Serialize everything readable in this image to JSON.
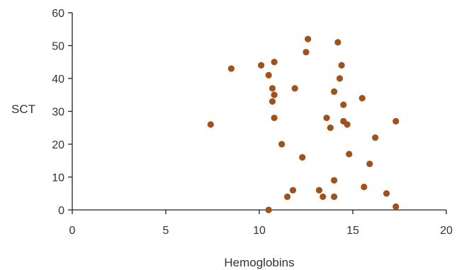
{
  "chart_data": {
    "type": "scatter",
    "title": "",
    "xlabel": "Hemoglobins",
    "ylabel": "SCT",
    "xlim": [
      0,
      20
    ],
    "ylim": [
      0,
      60
    ],
    "xticks": [
      0,
      5,
      10,
      15,
      20
    ],
    "yticks": [
      0,
      10,
      20,
      30,
      40,
      50,
      60
    ],
    "grid": false,
    "legend": "none",
    "marker_color": "#A0521D",
    "series": [
      {
        "points": [
          {
            "x": 7.4,
            "y": 26
          },
          {
            "x": 8.5,
            "y": 43
          },
          {
            "x": 10.1,
            "y": 44
          },
          {
            "x": 10.5,
            "y": 41
          },
          {
            "x": 10.8,
            "y": 45
          },
          {
            "x": 10.7,
            "y": 37
          },
          {
            "x": 10.8,
            "y": 35
          },
          {
            "x": 10.7,
            "y": 33
          },
          {
            "x": 10.8,
            "y": 28
          },
          {
            "x": 11.2,
            "y": 20
          },
          {
            "x": 10.5,
            "y": 0
          },
          {
            "x": 11.5,
            "y": 4
          },
          {
            "x": 11.8,
            "y": 6
          },
          {
            "x": 11.9,
            "y": 37
          },
          {
            "x": 12.3,
            "y": 16
          },
          {
            "x": 12.5,
            "y": 48
          },
          {
            "x": 12.6,
            "y": 52
          },
          {
            "x": 13.2,
            "y": 6
          },
          {
            "x": 13.4,
            "y": 4
          },
          {
            "x": 13.6,
            "y": 28
          },
          {
            "x": 13.8,
            "y": 25
          },
          {
            "x": 14.0,
            "y": 36
          },
          {
            "x": 14.0,
            "y": 9
          },
          {
            "x": 14.0,
            "y": 4
          },
          {
            "x": 14.2,
            "y": 51
          },
          {
            "x": 14.3,
            "y": 40
          },
          {
            "x": 14.4,
            "y": 44
          },
          {
            "x": 14.5,
            "y": 32
          },
          {
            "x": 14.5,
            "y": 27
          },
          {
            "x": 14.7,
            "y": 26
          },
          {
            "x": 14.8,
            "y": 17
          },
          {
            "x": 15.5,
            "y": 34
          },
          {
            "x": 15.6,
            "y": 7
          },
          {
            "x": 15.9,
            "y": 14
          },
          {
            "x": 16.2,
            "y": 22
          },
          {
            "x": 16.8,
            "y": 5
          },
          {
            "x": 17.3,
            "y": 27
          },
          {
            "x": 17.3,
            "y": 1
          }
        ]
      }
    ]
  }
}
